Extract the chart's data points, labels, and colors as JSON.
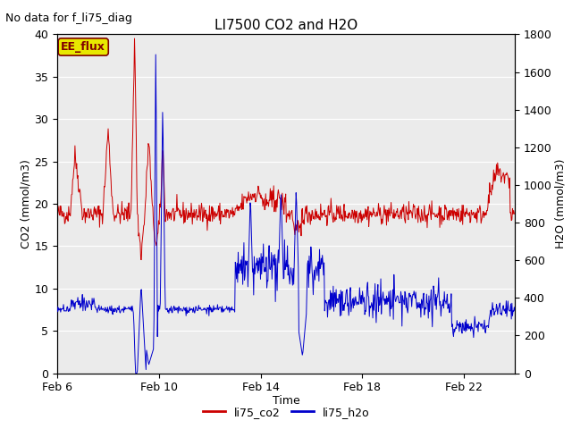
{
  "title": "LI7500 CO2 and H2O",
  "top_left_text": "No data for f_li75_diag",
  "annotation_box": "EE_flux",
  "xlabel": "Time",
  "ylabel_left": "CO2 (mmol/m3)",
  "ylabel_right": "H2O (mmol/m3)",
  "ylim_left": [
    0,
    40
  ],
  "ylim_right": [
    0,
    1800
  ],
  "background_color": "#ffffff",
  "plot_bg_color": "#ebebeb",
  "grid_color": "#ffffff",
  "legend_labels": [
    "li75_co2",
    "li75_h2o"
  ],
  "legend_colors": [
    "#cc0000",
    "#0000cc"
  ],
  "co2_color": "#cc0000",
  "h2o_color": "#0000cc",
  "annotation_box_facecolor": "#e8e800",
  "annotation_box_edgecolor": "#800000",
  "annotation_box_textcolor": "#800000",
  "xtick_labels": [
    "Feb 6",
    "Feb 10",
    "Feb 14",
    "Feb 18",
    "Feb 22"
  ],
  "xtick_positions": [
    6,
    10,
    14,
    18,
    22
  ],
  "yticks_left": [
    0,
    5,
    10,
    15,
    20,
    25,
    30,
    35,
    40
  ],
  "yticks_right": [
    0,
    200,
    400,
    600,
    800,
    1000,
    1200,
    1400,
    1600,
    1800
  ],
  "figsize": [
    6.4,
    4.8
  ],
  "dpi": 100,
  "title_fontsize": 11,
  "label_fontsize": 9,
  "tick_fontsize": 9,
  "legend_fontsize": 9,
  "toptext_fontsize": 9,
  "xlim": [
    6,
    24
  ]
}
